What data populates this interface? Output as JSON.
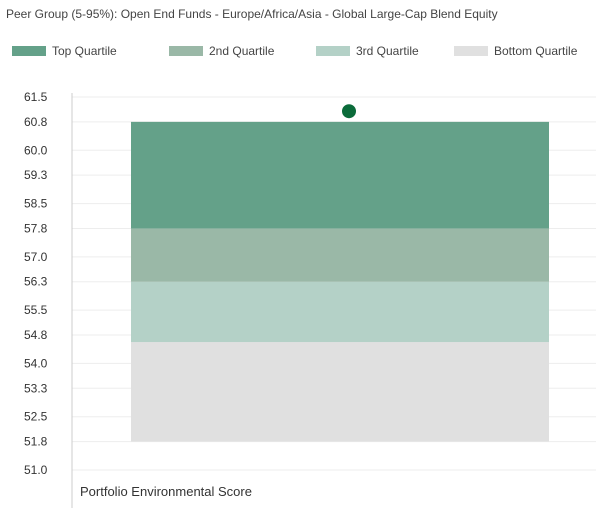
{
  "chart_data": {
    "type": "bar",
    "title": "Peer Group (5-95%): Open End Funds - Europe/Africa/Asia - Global Large-Cap Blend Equity",
    "categories": [
      "Portfolio Environmental Score"
    ],
    "series": [
      {
        "name": "Bottom Quartile",
        "low": 51.8,
        "high": 54.6,
        "color": "#e0e0e0"
      },
      {
        "name": "3rd Quartile",
        "low": 54.6,
        "high": 56.3,
        "color": "#b4d1c7"
      },
      {
        "name": "2nd Quartile",
        "low": 56.3,
        "high": 57.8,
        "color": "#9ab8a7"
      },
      {
        "name": "Top Quartile",
        "low": 57.8,
        "high": 60.8,
        "color": "#64a189"
      }
    ],
    "legend_order": [
      "Top Quartile",
      "2nd Quartile",
      "3rd Quartile",
      "Bottom Quartile"
    ],
    "legend_position": "top",
    "marker": {
      "value": 61.1,
      "color": "#0b6b3a"
    },
    "ylim": [
      51.0,
      61.5
    ],
    "yticks": [
      "61.5",
      "60.8",
      "60.0",
      "59.3",
      "58.5",
      "57.8",
      "57.0",
      "56.3",
      "55.5",
      "54.8",
      "54.0",
      "53.3",
      "52.5",
      "51.8",
      "51.0"
    ],
    "grid": true,
    "grid_color": "#ededed",
    "axis_color": "#cccccc"
  }
}
